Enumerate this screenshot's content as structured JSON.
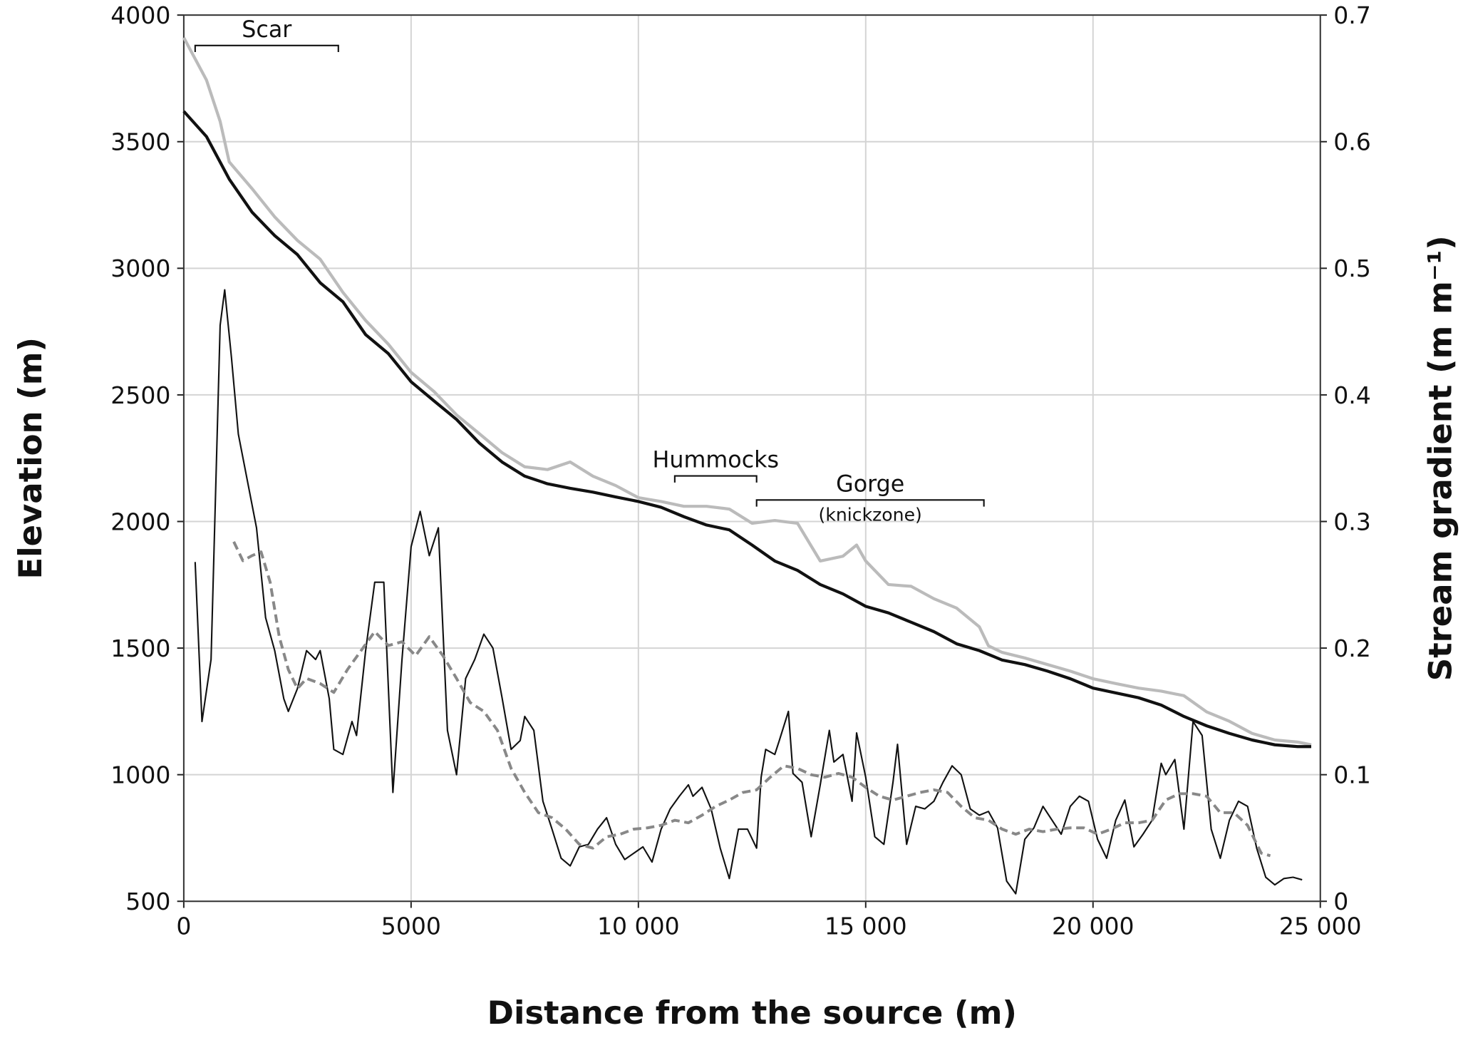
{
  "chart_data": {
    "type": "line",
    "xlabel": "Distance from the source (m)",
    "ylabel": "Elevation (m)",
    "y2label": "Stream gradient (m m⁻¹)",
    "xlim": [
      0,
      25000
    ],
    "xticks": [
      0,
      5000,
      {
        "value": 10000,
        "label": "10 000"
      },
      {
        "value": 15000,
        "label": "15 000"
      },
      {
        "value": 20000,
        "label": "20 000"
      },
      {
        "value": 25000,
        "label": "25 000"
      }
    ],
    "ylim": [
      500,
      4000
    ],
    "yticks": [
      500,
      1000,
      1500,
      2000,
      2500,
      3000,
      3500,
      4000
    ],
    "y2lim": [
      0,
      0.7
    ],
    "y2ticks": [
      0,
      0.1,
      0.2,
      0.3,
      0.4,
      0.5,
      0.6,
      0.7
    ],
    "grid": true,
    "series": [
      {
        "color": "#bbbbbb",
        "width": 3.2,
        "style": "solid",
        "x": [
          0,
          500,
          800,
          1000,
          1500,
          2000,
          2500,
          3000,
          3500,
          4000,
          4500,
          5000,
          5500,
          6000,
          6500,
          7000,
          7500,
          8000,
          8500,
          9000,
          9500,
          10000,
          10500,
          11000,
          11500,
          12000,
          12500,
          13000,
          13500,
          14000,
          14500,
          14800,
          15000,
          15500,
          16000,
          16500,
          17000,
          17500,
          17700,
          18000,
          18500,
          19000,
          19500,
          20000,
          20500,
          21000,
          21500,
          22000,
          22500,
          23000,
          23500,
          24000,
          24500,
          24800
        ],
        "values": [
          3911,
          3743,
          3580,
          3420,
          3315,
          3203,
          3110,
          3036,
          2905,
          2794,
          2700,
          2589,
          2514,
          2421,
          2347,
          2272,
          2216,
          2205,
          2235,
          2179,
          2142,
          2094,
          2079,
          2060,
          2060,
          2049,
          1993,
          2004,
          1993,
          1844,
          1863,
          1907,
          1844,
          1751,
          1744,
          1695,
          1658,
          1584,
          1509,
          1483,
          1461,
          1435,
          1409,
          1379,
          1360,
          1342,
          1330,
          1312,
          1248,
          1211,
          1163,
          1137,
          1129,
          1118
        ]
      },
      {
        "color": "#111111",
        "width": 3.2,
        "style": "solid",
        "x": [
          0,
          500,
          1000,
          1500,
          2000,
          2500,
          3000,
          3500,
          4000,
          4500,
          5000,
          5500,
          6000,
          6500,
          7000,
          7500,
          8000,
          8500,
          9000,
          9500,
          10000,
          10500,
          11000,
          11500,
          12000,
          12500,
          13000,
          13500,
          14000,
          14500,
          15000,
          15500,
          16000,
          16500,
          17000,
          17500,
          18000,
          18500,
          19000,
          19500,
          20000,
          20500,
          21000,
          21500,
          22000,
          22500,
          23000,
          23500,
          24000,
          24500,
          24800
        ],
        "values": [
          3620,
          3520,
          3352,
          3222,
          3129,
          3054,
          2943,
          2868,
          2738,
          2663,
          2552,
          2477,
          2403,
          2310,
          2235,
          2179,
          2149,
          2131,
          2116,
          2097,
          2079,
          2056,
          2019,
          1986,
          1967,
          1907,
          1844,
          1807,
          1751,
          1714,
          1665,
          1639,
          1602,
          1565,
          1517,
          1490,
          1453,
          1435,
          1409,
          1379,
          1342,
          1323,
          1304,
          1275,
          1230,
          1193,
          1163,
          1137,
          1118,
          1111,
          1111
        ]
      },
      {
        "color": "#111111",
        "width": 1.6,
        "style": "solid",
        "axis": "y2",
        "x": [
          250,
          400,
          600,
          800,
          900,
          1050,
          1200,
          1400,
          1600,
          1800,
          2000,
          2200,
          2300,
          2500,
          2700,
          2900,
          3000,
          3200,
          3300,
          3500,
          3700,
          3800,
          4000,
          4200,
          4400,
          4600,
          4800,
          5000,
          5200,
          5400,
          5600,
          5800,
          6000,
          6200,
          6400,
          6600,
          6800,
          7000,
          7200,
          7400,
          7500,
          7700,
          7900,
          8100,
          8300,
          8500,
          8700,
          8900,
          9100,
          9300,
          9500,
          9700,
          9900,
          10100,
          10300,
          10500,
          10700,
          10900,
          11100,
          11200,
          11400,
          11600,
          11800,
          12000,
          12200,
          12400,
          12600,
          12700,
          12800,
          13000,
          13100,
          13300,
          13400,
          13600,
          13800,
          14000,
          14200,
          14300,
          14500,
          14700,
          14800,
          15000,
          15200,
          15400,
          15600,
          15700,
          15900,
          16100,
          16300,
          16500,
          16700,
          16900,
          17100,
          17300,
          17500,
          17700,
          17900,
          18100,
          18300,
          18500,
          18700,
          18900,
          19100,
          19300,
          19500,
          19700,
          19900,
          20100,
          20300,
          20500,
          20700,
          20900,
          21100,
          21300,
          21500,
          21600,
          21800,
          22000,
          22200,
          22400,
          22600,
          22800,
          23000,
          23200,
          23400,
          23600,
          23800,
          24000,
          24200,
          24400,
          24600
        ],
        "values": [
          0.268,
          0.142,
          0.191,
          0.455,
          0.483,
          0.429,
          0.369,
          0.332,
          0.295,
          0.224,
          0.198,
          0.16,
          0.15,
          0.168,
          0.198,
          0.191,
          0.198,
          0.16,
          0.12,
          0.116,
          0.142,
          0.131,
          0.198,
          0.252,
          0.252,
          0.086,
          0.191,
          0.28,
          0.308,
          0.273,
          0.295,
          0.135,
          0.1,
          0.176,
          0.191,
          0.211,
          0.2,
          0.161,
          0.12,
          0.127,
          0.146,
          0.135,
          0.079,
          0.057,
          0.034,
          0.028,
          0.043,
          0.045,
          0.057,
          0.066,
          0.045,
          0.033,
          0.038,
          0.043,
          0.031,
          0.057,
          0.073,
          0.083,
          0.092,
          0.083,
          0.09,
          0.073,
          0.042,
          0.018,
          0.057,
          0.057,
          0.042,
          0.098,
          0.12,
          0.116,
          0.127,
          0.15,
          0.101,
          0.094,
          0.051,
          0.092,
          0.135,
          0.11,
          0.116,
          0.079,
          0.133,
          0.098,
          0.051,
          0.045,
          0.094,
          0.124,
          0.045,
          0.075,
          0.073,
          0.079,
          0.094,
          0.107,
          0.1,
          0.073,
          0.068,
          0.071,
          0.058,
          0.016,
          0.006,
          0.049,
          0.058,
          0.075,
          0.064,
          0.053,
          0.075,
          0.083,
          0.079,
          0.049,
          0.034,
          0.064,
          0.08,
          0.043,
          0.053,
          0.064,
          0.109,
          0.1,
          0.112,
          0.057,
          0.142,
          0.131,
          0.057,
          0.034,
          0.064,
          0.079,
          0.075,
          0.042,
          0.019,
          0.013,
          0.018,
          0.019,
          0.017
        ]
      },
      {
        "color": "#888888",
        "width": 3,
        "style": "dashed",
        "axis": "y2",
        "x": [
          1100,
          1300,
          1500,
          1700,
          1900,
          2100,
          2300,
          2500,
          2700,
          3000,
          3300,
          3600,
          3900,
          4200,
          4500,
          4800,
          5100,
          5400,
          5700,
          6000,
          6300,
          6600,
          6900,
          7200,
          7500,
          7800,
          8100,
          8400,
          8700,
          9000,
          9300,
          9600,
          9900,
          10200,
          10500,
          10800,
          11100,
          11400,
          11700,
          12000,
          12300,
          12600,
          12900,
          13200,
          13500,
          13800,
          14100,
          14400,
          14700,
          15000,
          15300,
          15600,
          15900,
          16200,
          16500,
          16800,
          17100,
          17400,
          17700,
          18000,
          18300,
          18600,
          18900,
          19200,
          19500,
          19800,
          20100,
          20400,
          20700,
          21000,
          21300,
          21600,
          21900,
          22200,
          22500,
          22800,
          23100,
          23400,
          23700,
          23900
        ],
        "values": [
          0.284,
          0.269,
          0.273,
          0.276,
          0.252,
          0.209,
          0.183,
          0.168,
          0.176,
          0.172,
          0.165,
          0.183,
          0.198,
          0.213,
          0.202,
          0.205,
          0.194,
          0.209,
          0.194,
          0.176,
          0.157,
          0.15,
          0.135,
          0.105,
          0.086,
          0.07,
          0.066,
          0.057,
          0.045,
          0.042,
          0.051,
          0.053,
          0.057,
          0.058,
          0.06,
          0.064,
          0.062,
          0.068,
          0.075,
          0.08,
          0.086,
          0.088,
          0.098,
          0.107,
          0.105,
          0.1,
          0.098,
          0.101,
          0.098,
          0.09,
          0.083,
          0.08,
          0.083,
          0.086,
          0.088,
          0.086,
          0.075,
          0.066,
          0.064,
          0.057,
          0.053,
          0.057,
          0.055,
          0.057,
          0.058,
          0.058,
          0.053,
          0.057,
          0.062,
          0.062,
          0.064,
          0.08,
          0.085,
          0.085,
          0.083,
          0.07,
          0.07,
          0.06,
          0.038,
          0.036
        ]
      }
    ],
    "annotations": [
      {
        "text": "Scar",
        "x": [
          250,
          3400
        ],
        "y": 3880
      },
      {
        "text": "Hummocks",
        "x": [
          10800,
          12600
        ],
        "y": 2180
      },
      {
        "text": "Gorge",
        "subtext": "(knickzone)",
        "x": [
          12600,
          17600
        ],
        "y": 2085
      }
    ]
  }
}
